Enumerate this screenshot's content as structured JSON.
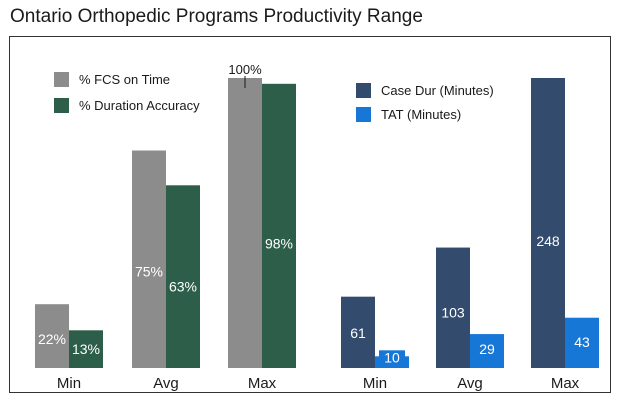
{
  "title": "Ontario Orthopedic Programs Productivity Range",
  "colors": {
    "fcs": "#8c8c8c",
    "duration": "#2c5e4a",
    "case_dur": "#334c6e",
    "tat": "#1777d6"
  },
  "chart_data": [
    {
      "type": "bar",
      "categories": [
        "Min",
        "Avg",
        "Max"
      ],
      "series": [
        {
          "name": "% FCS on Time",
          "values": [
            22,
            75,
            100
          ],
          "labels": [
            "22%",
            "75%",
            "100%"
          ]
        },
        {
          "name": "% Duration Accuracy",
          "values": [
            13,
            63,
            98
          ],
          "labels": [
            "13%",
            "63%",
            "98%"
          ]
        }
      ],
      "ylim": [
        0,
        100
      ],
      "legend": "top-left",
      "grid": false
    },
    {
      "type": "bar",
      "categories": [
        "Min",
        "Avg",
        "Max"
      ],
      "series": [
        {
          "name": "Case Dur (Minutes)",
          "values": [
            61,
            103,
            248
          ],
          "labels": [
            "61",
            "103",
            "248"
          ]
        },
        {
          "name": "TAT (Minutes)",
          "values": [
            10,
            29,
            43
          ],
          "labels": [
            "10",
            "29",
            "43"
          ]
        }
      ],
      "ylim": [
        0,
        248
      ],
      "legend": "top-left",
      "grid": false
    }
  ]
}
